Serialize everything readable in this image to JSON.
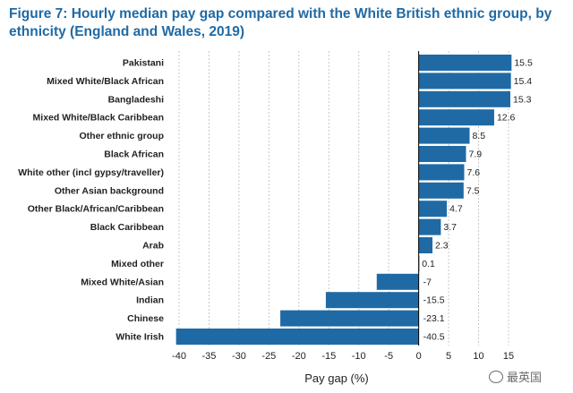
{
  "chart_data": {
    "type": "bar",
    "orientation": "horizontal",
    "title": "Figure 7: Hourly median pay gap compared with the White British ethnic group, by ethnicity (England and Wales, 2019)",
    "categories": [
      "Pakistani",
      "Mixed White/Black African",
      "Bangladeshi",
      "Mixed White/Black Caribbean",
      "Other ethnic group",
      "Black African",
      "White other (incl gypsy/traveller)",
      "Other Asian background",
      "Other Black/African/Caribbean",
      "Black Caribbean",
      "Arab",
      "Mixed other",
      "Mixed White/Asian",
      "Indian",
      "Chinese",
      "White Irish"
    ],
    "values": [
      15.5,
      15.4,
      15.3,
      12.6,
      8.5,
      7.9,
      7.6,
      7.5,
      4.7,
      3.7,
      2.3,
      0.1,
      -7,
      -15.5,
      -23.1,
      -40.5
    ],
    "value_labels": [
      "15.5",
      "15.4",
      "15.3",
      "12.6",
      "8.5",
      "7.9",
      "7.6",
      "7.5",
      "4.7",
      "3.7",
      "2.3",
      "0.1",
      "-7",
      "-15.5",
      "-23.1",
      "-40.5"
    ],
    "xlabel": "Pay gap (%)",
    "ylabel": "",
    "xlim": [
      -40,
      15
    ],
    "xticks": [
      -40,
      -35,
      -30,
      -25,
      -20,
      -15,
      -10,
      -5,
      0,
      5,
      10,
      15
    ],
    "xtick_labels": [
      "-40",
      "-35",
      "-30",
      "-25",
      "-20",
      "-15",
      "-10",
      "-5",
      "0",
      "5",
      "10",
      "15"
    ],
    "grid": true,
    "bar_color": "#1f6aa5"
  },
  "watermark": {
    "text": "最英国",
    "icon": "wechat-icon"
  }
}
